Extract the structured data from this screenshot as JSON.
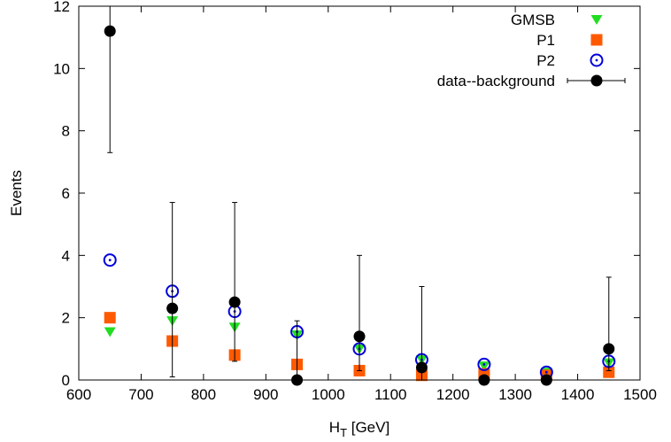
{
  "chart_data": {
    "type": "scatter",
    "xlabel_main": "H",
    "xlabel_sub": "T",
    "xlabel_unit": " [GeV]",
    "ylabel": "Events",
    "xlim": [
      600,
      1500
    ],
    "ylim": [
      0,
      12
    ],
    "xticks": [
      600,
      700,
      800,
      900,
      1000,
      1100,
      1200,
      1300,
      1400,
      1500
    ],
    "yticks": [
      0,
      2,
      4,
      6,
      8,
      10,
      12
    ],
    "grid": false,
    "legend_position": "top-right",
    "series": [
      {
        "name": "GMSB",
        "marker": "triangle-down",
        "color": "#22dd22",
        "x": [
          650,
          750,
          850,
          950,
          1050,
          1150,
          1250,
          1350,
          1450
        ],
        "y": [
          1.55,
          1.9,
          1.7,
          1.45,
          1.0,
          0.65,
          0.45,
          0.25,
          0.55
        ]
      },
      {
        "name": "P1",
        "marker": "square",
        "color": "#ff5a00",
        "x": [
          650,
          750,
          850,
          950,
          1050,
          1150,
          1250,
          1350,
          1450
        ],
        "y": [
          2.0,
          1.25,
          0.8,
          0.5,
          0.3,
          0.15,
          0.2,
          0.15,
          0.25
        ]
      },
      {
        "name": "P2",
        "marker": "circle-dot",
        "color": "#0000dd",
        "x": [
          650,
          750,
          850,
          950,
          1050,
          1150,
          1250,
          1350,
          1450
        ],
        "y": [
          3.85,
          2.85,
          2.2,
          1.55,
          1.0,
          0.65,
          0.5,
          0.25,
          0.6
        ]
      },
      {
        "name": "data--background",
        "marker": "filled-circle-errorbar",
        "color": "#000000",
        "x": [
          650,
          750,
          850,
          950,
          1050,
          1150,
          1250,
          1350,
          1450
        ],
        "y": [
          11.2,
          2.3,
          2.5,
          0.0,
          1.4,
          0.4,
          0.0,
          0.0,
          1.0
        ],
        "yerr_low": [
          7.3,
          0.1,
          0.6,
          0.0,
          0.3,
          0.0,
          0.0,
          0.0,
          0.3
        ],
        "yerr_high": [
          12.0,
          5.7,
          5.7,
          1.9,
          4.0,
          3.0,
          0.0,
          0.0,
          3.3
        ]
      }
    ]
  }
}
